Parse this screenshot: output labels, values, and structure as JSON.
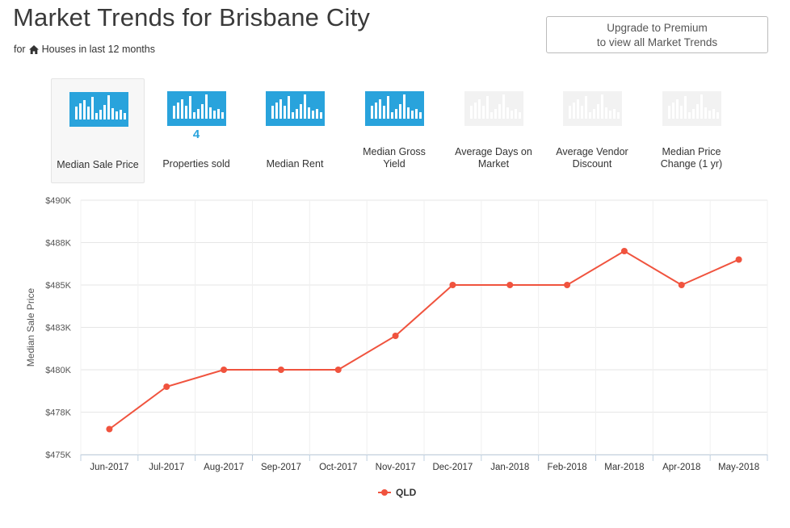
{
  "header": {
    "title": "Market Trends for Brisbane City",
    "subtitle_prefix": "for",
    "subtitle_rest": "Houses in last 12 months"
  },
  "upgrade": {
    "line1": "Upgrade to Premium",
    "line2": "to view all Market Trends"
  },
  "metrics": [
    {
      "label": "Median Sale Price",
      "active": true,
      "enabled": true,
      "count": ""
    },
    {
      "label": "Properties sold",
      "active": false,
      "enabled": true,
      "count": "4"
    },
    {
      "label": "Median Rent",
      "active": false,
      "enabled": true,
      "count": ""
    },
    {
      "label": "Median Gross Yield",
      "active": false,
      "enabled": true,
      "count": ""
    },
    {
      "label": "Average Days on Market",
      "active": false,
      "enabled": false,
      "count": ""
    },
    {
      "label": "Average Vendor Discount",
      "active": false,
      "enabled": false,
      "count": ""
    },
    {
      "label": "Median Price Change (1 yr)",
      "active": false,
      "enabled": false,
      "count": ""
    }
  ],
  "colors": {
    "accent": "#29a3dc",
    "series": "#f0533e",
    "disabled": "#f2f2f2"
  },
  "chart_data": {
    "type": "line",
    "ylabel": "Median Sale Price",
    "ylim": [
      475000,
      490000
    ],
    "ytick_values": [
      475000,
      477500,
      480000,
      482500,
      485000,
      487500,
      490000
    ],
    "ytick_labels": [
      "$475K",
      "$478K",
      "$480K",
      "$483K",
      "$485K",
      "$488K",
      "$490K"
    ],
    "categories": [
      "Jun-2017",
      "Jul-2017",
      "Aug-2017",
      "Sep-2017",
      "Oct-2017",
      "Nov-2017",
      "Dec-2017",
      "Jan-2018",
      "Feb-2018",
      "Mar-2018",
      "Apr-2018",
      "May-2018"
    ],
    "series": [
      {
        "name": "QLD",
        "values": [
          476500,
          479000,
          480000,
          480000,
          480000,
          482000,
          485000,
          485000,
          485000,
          487000,
          485000,
          486500
        ]
      }
    ],
    "grid": true,
    "legend": "bottom-center"
  }
}
